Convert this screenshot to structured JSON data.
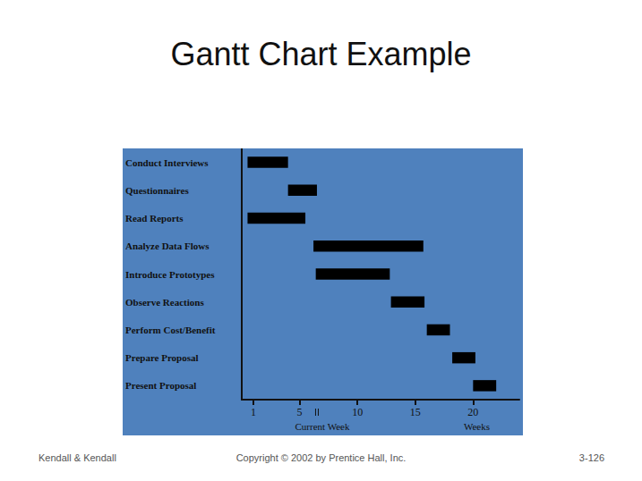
{
  "chart_data": {
    "type": "gantt",
    "title": "Gantt Chart Example",
    "categories": [
      "Conduct Interviews",
      "Questionnaires",
      "Read Reports",
      "Analyze Data Flows",
      "Introduce Prototypes",
      "Observe Reactions",
      "Perform Cost/Benefit",
      "Prepare Proposal",
      "Present Proposal"
    ],
    "start": [
      0.5,
      4,
      0.5,
      6.2,
      6.4,
      12.9,
      16,
      18.2,
      20
    ],
    "end": [
      4,
      6.5,
      5.5,
      15.7,
      12.8,
      15.8,
      18,
      20.2,
      22
    ],
    "color": "#000000",
    "orientation": "horizontal",
    "xlim": [
      0,
      24
    ],
    "xticks": [
      1,
      5,
      10,
      15,
      20
    ],
    "x_label": "Weeks",
    "current_week": 6.5,
    "current_week_label": "Current Week"
  },
  "footer": {
    "left": "Kendall & Kendall",
    "center": "Copyright © 2002 by Prentice Hall, Inc.",
    "right": "3-126"
  }
}
